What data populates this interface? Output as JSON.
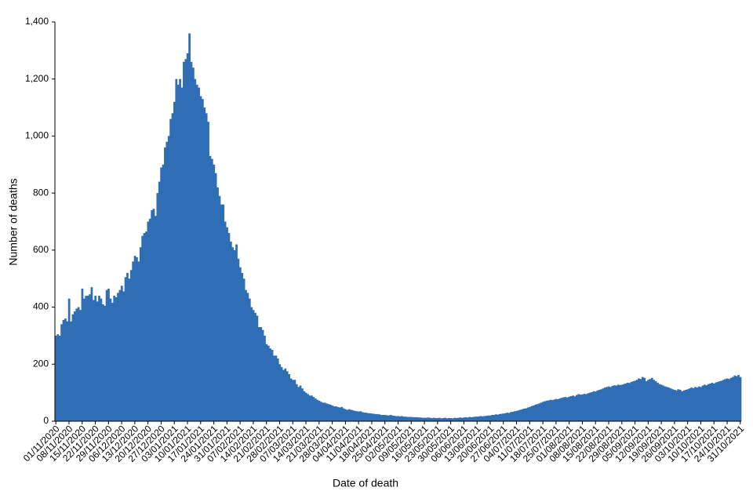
{
  "chart_data": {
    "type": "bar",
    "x_label": "Date of death",
    "y_label": "Number of deaths",
    "color": "#2f6eb5",
    "ylim": [
      0,
      1400
    ],
    "yticks": [
      0,
      200,
      400,
      600,
      800,
      {
        "value": 1000,
        "label": "1,000"
      },
      {
        "value": 1200,
        "label": "1,200"
      },
      {
        "value": 1400,
        "label": "1,400"
      }
    ],
    "categories": [
      "01/11/2020",
      null,
      null,
      null,
      null,
      null,
      null,
      "08/11/2020",
      null,
      null,
      null,
      null,
      null,
      null,
      "15/11/2020",
      null,
      null,
      null,
      null,
      null,
      null,
      "22/11/2020",
      null,
      null,
      null,
      null,
      null,
      null,
      "29/11/2020",
      null,
      null,
      null,
      null,
      null,
      null,
      "06/12/2020",
      null,
      null,
      null,
      null,
      null,
      null,
      "13/12/2020",
      null,
      null,
      null,
      null,
      null,
      null,
      "20/12/2020",
      null,
      null,
      null,
      null,
      null,
      null,
      "27/12/2020",
      null,
      null,
      null,
      null,
      null,
      null,
      "03/01/2021",
      null,
      null,
      null,
      null,
      null,
      null,
      "10/01/2021",
      null,
      null,
      null,
      null,
      null,
      null,
      "17/01/2021",
      null,
      null,
      null,
      null,
      null,
      null,
      "24/01/2021",
      null,
      null,
      null,
      null,
      null,
      null,
      "31/01/2021",
      null,
      null,
      null,
      null,
      null,
      null,
      "07/02/2021",
      null,
      null,
      null,
      null,
      null,
      null,
      "14/02/2021",
      null,
      null,
      null,
      null,
      null,
      null,
      "21/02/2021",
      null,
      null,
      null,
      null,
      null,
      null,
      "28/02/2021",
      null,
      null,
      null,
      null,
      null,
      null,
      "07/03/2021",
      null,
      null,
      null,
      null,
      null,
      null,
      "14/03/2021",
      null,
      null,
      null,
      null,
      null,
      null,
      "21/03/2021",
      null,
      null,
      null,
      null,
      null,
      null,
      "28/03/2021",
      null,
      null,
      null,
      null,
      null,
      null,
      "04/04/2021",
      null,
      null,
      null,
      null,
      null,
      null,
      "11/04/2021",
      null,
      null,
      null,
      null,
      null,
      null,
      "18/04/2021",
      null,
      null,
      null,
      null,
      null,
      null,
      "25/04/2021",
      null,
      null,
      null,
      null,
      null,
      null,
      "02/05/2021",
      null,
      null,
      null,
      null,
      null,
      null,
      "09/05/2021",
      null,
      null,
      null,
      null,
      null,
      null,
      "16/05/2021",
      null,
      null,
      null,
      null,
      null,
      null,
      "23/05/2021",
      null,
      null,
      null,
      null,
      null,
      null,
      "30/05/2021",
      null,
      null,
      null,
      null,
      null,
      null,
      "06/06/2021",
      null,
      null,
      null,
      null,
      null,
      null,
      "13/06/2021",
      null,
      null,
      null,
      null,
      null,
      null,
      "20/06/2021",
      null,
      null,
      null,
      null,
      null,
      null,
      "27/06/2021",
      null,
      null,
      null,
      null,
      null,
      null,
      "04/07/2021",
      null,
      null,
      null,
      null,
      null,
      null,
      "11/07/2021",
      null,
      null,
      null,
      null,
      null,
      null,
      "18/07/2021",
      null,
      null,
      null,
      null,
      null,
      null,
      "25/07/2021",
      null,
      null,
      null,
      null,
      null,
      null,
      "01/08/2021",
      null,
      null,
      null,
      null,
      null,
      null,
      "08/08/2021",
      null,
      null,
      null,
      null,
      null,
      null,
      "15/08/2021",
      null,
      null,
      null,
      null,
      null,
      null,
      "22/08/2021",
      null,
      null,
      null,
      null,
      null,
      null,
      "29/08/2021",
      null,
      null,
      null,
      null,
      null,
      null,
      "05/09/2021",
      null,
      null,
      null,
      null,
      null,
      null,
      "12/09/2021",
      null,
      null,
      null,
      null,
      null,
      null,
      "19/09/2021",
      null,
      null,
      null,
      null,
      null,
      null,
      "26/09/2021",
      null,
      null,
      null,
      null,
      null,
      null,
      "03/10/2021",
      null,
      null,
      null,
      null,
      null,
      null,
      "10/10/2021",
      null,
      null,
      null,
      null,
      null,
      null,
      "17/10/2021",
      null,
      null,
      null,
      null,
      null,
      null,
      "24/10/2021",
      null,
      null,
      null,
      null,
      null,
      null,
      "31/10/2021"
    ],
    "values": [
      300,
      305,
      300,
      340,
      355,
      360,
      350,
      430,
      350,
      375,
      385,
      395,
      400,
      390,
      465,
      430,
      440,
      440,
      445,
      470,
      425,
      440,
      420,
      440,
      430,
      410,
      405,
      460,
      465,
      430,
      415,
      440,
      435,
      450,
      460,
      475,
      455,
      505,
      520,
      500,
      530,
      560,
      580,
      575,
      560,
      610,
      650,
      660,
      665,
      700,
      710,
      740,
      745,
      720,
      800,
      840,
      890,
      900,
      960,
      980,
      1000,
      1060,
      1080,
      1120,
      1200,
      1180,
      1200,
      1170,
      1260,
      1270,
      1290,
      1360,
      1260,
      1240,
      1200,
      1180,
      1170,
      1140,
      1130,
      1100,
      1080,
      1050,
      930,
      920,
      900,
      870,
      820,
      790,
      760,
      760,
      700,
      680,
      660,
      630,
      610,
      600,
      620,
      570,
      540,
      520,
      500,
      460,
      450,
      430,
      400,
      390,
      380,
      370,
      330,
      330,
      320,
      300,
      270,
      265,
      255,
      250,
      230,
      230,
      220,
      200,
      190,
      180,
      185,
      175,
      165,
      150,
      145,
      145,
      130,
      120,
      125,
      115,
      105,
      100,
      95,
      90,
      90,
      85,
      80,
      75,
      72,
      68,
      65,
      65,
      62,
      60,
      58,
      55,
      52,
      52,
      50,
      48,
      50,
      45,
      42,
      40,
      42,
      40,
      38,
      36,
      35,
      34,
      35,
      32,
      30,
      30,
      28,
      28,
      27,
      26,
      25,
      25,
      24,
      22,
      22,
      22,
      21,
      20,
      22,
      20,
      19,
      18,
      18,
      17,
      18,
      16,
      16,
      15,
      15,
      15,
      14,
      14,
      14,
      13,
      13,
      12,
      12,
      12,
      13,
      12,
      11,
      12,
      11,
      11,
      12,
      10,
      11,
      12,
      10,
      11,
      11,
      10,
      12,
      11,
      12,
      13,
      12,
      13,
      14,
      13,
      15,
      14,
      15,
      16,
      16,
      17,
      18,
      17,
      18,
      19,
      20,
      20,
      22,
      22,
      24,
      23,
      25,
      26,
      27,
      28,
      30,
      29,
      32,
      33,
      35,
      36,
      38,
      40,
      42,
      44,
      45,
      48,
      50,
      53,
      55,
      58,
      60,
      62,
      65,
      68,
      70,
      72,
      73,
      75,
      74,
      76,
      78,
      77,
      80,
      82,
      84,
      85,
      83,
      86,
      88,
      90,
      87,
      92,
      95,
      93,
      94,
      96,
      95,
      98,
      100,
      102,
      105,
      104,
      108,
      110,
      112,
      115,
      118,
      120,
      122,
      120,
      124,
      126,
      125,
      128,
      127,
      128,
      130,
      132,
      135,
      134,
      138,
      140,
      142,
      145,
      150,
      148,
      155,
      152,
      140,
      145,
      148,
      152,
      145,
      140,
      135,
      130,
      128,
      125,
      122,
      120,
      118,
      115,
      112,
      110,
      108,
      112,
      110,
      105,
      108,
      110,
      112,
      115,
      118,
      116,
      120,
      118,
      122,
      120,
      125,
      128,
      126,
      130,
      132,
      135,
      132,
      136,
      138,
      140,
      142,
      145,
      148,
      150,
      148,
      152,
      155,
      160,
      158,
      162,
      155
    ]
  }
}
